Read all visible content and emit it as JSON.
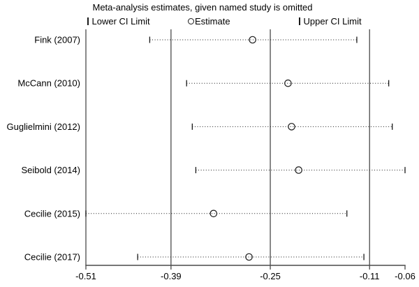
{
  "title": "Meta-analysis estimates, given named study is omitted",
  "legend": {
    "lower": "Lower CI Limit",
    "estimate": "Estimate",
    "upper": "Upper CI Limit"
  },
  "chart_data": {
    "type": "scatter",
    "subtype": "leave-one-out-forest-plot",
    "title": "Meta-analysis estimates, given named study is omitted",
    "legend_entries": [
      "Lower CI Limit",
      "Estimate",
      "Upper CI Limit"
    ],
    "legend_position": "top",
    "grid": false,
    "studies": [
      {
        "label": "Fink (2007)",
        "lower": -0.42,
        "estimate": -0.275,
        "upper": -0.128
      },
      {
        "label": "McCann (2010)",
        "lower": -0.368,
        "estimate": -0.225,
        "upper": -0.083
      },
      {
        "label": "Guglielmini (2012)",
        "lower": -0.36,
        "estimate": -0.22,
        "upper": -0.078
      },
      {
        "label": "Seibold (2014)",
        "lower": -0.355,
        "estimate": -0.21,
        "upper": -0.06
      },
      {
        "label": "Cecilie (2015)",
        "lower": -0.51,
        "estimate": -0.33,
        "upper": -0.142
      },
      {
        "label": "Cecilie (2017)",
        "lower": -0.437,
        "estimate": -0.28,
        "upper": -0.118
      }
    ],
    "x_ticks": [
      -0.51,
      -0.39,
      -0.25,
      -0.11,
      -0.06
    ],
    "x_tick_labels": [
      "-0.51",
      "-0.39",
      "-0.25",
      "-0.11",
      "-0.06"
    ],
    "ref_lines": [
      -0.39,
      -0.25,
      -0.11
    ],
    "xlim": [
      -0.51,
      -0.06
    ]
  },
  "colors": {
    "background": "#ffffff",
    "axis_line": "#4a4a4a",
    "ci_line": "#1a1a1a",
    "text": "#000000"
  }
}
